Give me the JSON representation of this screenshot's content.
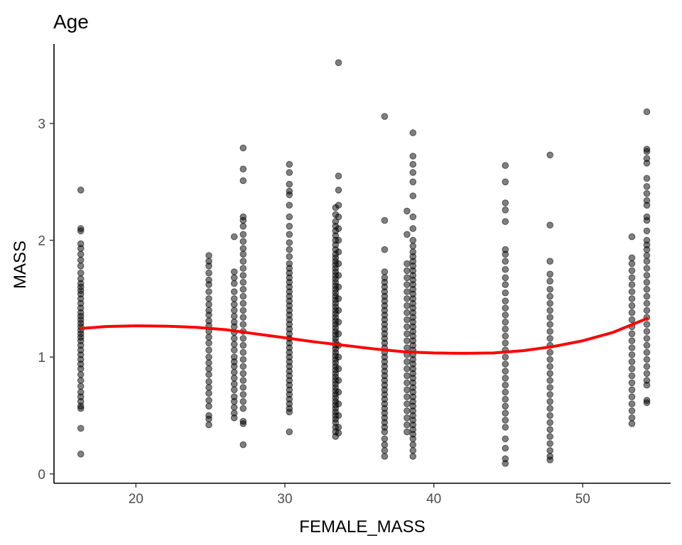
{
  "chart_data": {
    "type": "scatter",
    "title": "Age",
    "xlabel": "FEMALE_MASS",
    "ylabel": "MASS",
    "xlim": [
      14.5,
      55.9
    ],
    "ylim": [
      -0.08,
      3.68
    ],
    "xticks": [
      20,
      30,
      40,
      50
    ],
    "yticks": [
      0,
      1,
      2,
      3
    ],
    "grid": false,
    "legend": "none",
    "point_color": "#000000",
    "point_opacity": 0.5,
    "smooth_color": "#ff0000",
    "groups": [
      {
        "x": 16.3,
        "y": [
          2.43,
          2.1,
          2.08,
          1.97,
          1.93,
          1.88,
          1.83,
          1.78,
          1.72,
          1.67,
          1.63,
          1.6,
          1.57,
          1.54,
          1.5,
          1.46,
          1.42,
          1.38,
          1.35,
          1.32,
          1.29,
          1.26,
          1.23,
          1.2,
          1.17,
          1.14,
          1.1,
          1.06,
          1.02,
          0.98,
          0.94,
          0.9,
          0.85,
          0.8,
          0.75,
          0.7,
          0.66,
          0.62,
          0.58,
          0.56,
          0.39,
          0.17
        ]
      },
      {
        "x": 24.9,
        "y": [
          1.87,
          1.82,
          1.78,
          1.72,
          1.66,
          1.62,
          1.56,
          1.5,
          1.45,
          1.4,
          1.36,
          1.31,
          1.27,
          1.22,
          1.17,
          1.12,
          1.06,
          1.0,
          0.95,
          0.9,
          0.85,
          0.79,
          0.74,
          0.69,
          0.63,
          0.58,
          0.5,
          0.47,
          0.42
        ]
      },
      {
        "x": 26.6,
        "y": [
          2.03,
          1.73,
          1.68,
          1.63,
          1.56,
          1.5,
          1.45,
          1.4,
          1.35,
          1.3,
          1.26,
          1.21,
          1.16,
          1.11,
          1.06,
          1.0,
          0.96,
          0.92,
          0.87,
          0.82,
          0.77,
          0.72,
          0.66,
          0.62,
          0.57,
          0.52,
          0.48
        ]
      },
      {
        "x": 27.2,
        "y": [
          2.79,
          2.61,
          2.51,
          2.2,
          2.17,
          2.12,
          2.05,
          1.99,
          1.93,
          1.88,
          1.82,
          1.76,
          1.7,
          1.64,
          1.58,
          1.52,
          1.46,
          1.4,
          1.34,
          1.28,
          1.22,
          1.16,
          1.1,
          1.04,
          0.98,
          0.92,
          0.86,
          0.8,
          0.74,
          0.68,
          0.62,
          0.56,
          0.45,
          0.43,
          0.25
        ]
      },
      {
        "x": 30.3,
        "y": [
          2.65,
          2.58,
          2.48,
          2.42,
          2.39,
          2.3,
          2.2,
          2.12,
          2.05,
          1.98,
          1.92,
          1.86,
          1.8,
          1.76,
          1.72,
          1.68,
          1.64,
          1.6,
          1.56,
          1.52,
          1.48,
          1.44,
          1.4,
          1.36,
          1.32,
          1.28,
          1.24,
          1.2,
          1.16,
          1.12,
          1.08,
          1.04,
          1.0,
          0.96,
          0.92,
          0.88,
          0.84,
          0.8,
          0.76,
          0.72,
          0.68,
          0.64,
          0.6,
          0.56,
          0.53,
          0.36
        ]
      },
      {
        "x": 33.4,
        "y": [
          2.28,
          2.22,
          2.16,
          2.12,
          2.08,
          2.04,
          2.0,
          1.96,
          1.92,
          1.88,
          1.85,
          1.82,
          1.79,
          1.76,
          1.73,
          1.7,
          1.67,
          1.64,
          1.61,
          1.58,
          1.55,
          1.52,
          1.49,
          1.46,
          1.43,
          1.4,
          1.37,
          1.34,
          1.31,
          1.28,
          1.25,
          1.22,
          1.19,
          1.16,
          1.13,
          1.1,
          1.07,
          1.04,
          1.01,
          0.98,
          0.95,
          0.92,
          0.89,
          0.86,
          0.83,
          0.8,
          0.77,
          0.74,
          0.71,
          0.68,
          0.65,
          0.62,
          0.59,
          0.56,
          0.53,
          0.5,
          0.47,
          0.44,
          0.4,
          0.36,
          0.32
        ]
      },
      {
        "x": 33.6,
        "y": [
          3.52,
          2.55,
          2.43,
          2.3,
          2.2,
          2.1,
          2.0,
          1.9,
          1.8,
          1.7,
          1.6,
          1.5,
          1.4,
          1.3,
          1.2,
          1.1,
          1.0,
          0.9,
          0.8,
          0.7,
          0.6,
          0.5,
          0.4,
          0.35
        ]
      },
      {
        "x": 36.7,
        "y": [
          3.06,
          2.17,
          1.92,
          1.73,
          1.68,
          1.64,
          1.6,
          1.56,
          1.52,
          1.48,
          1.44,
          1.4,
          1.36,
          1.32,
          1.28,
          1.24,
          1.2,
          1.16,
          1.12,
          1.08,
          1.04,
          1.0,
          0.96,
          0.92,
          0.88,
          0.84,
          0.8,
          0.76,
          0.72,
          0.68,
          0.64,
          0.6,
          0.56,
          0.52,
          0.48,
          0.44,
          0.4,
          0.36,
          0.3,
          0.25,
          0.2,
          0.15
        ]
      },
      {
        "x": 38.2,
        "y": [
          2.25,
          2.05,
          1.8,
          1.74,
          1.68,
          1.62,
          1.56,
          1.5,
          1.44,
          1.38,
          1.32,
          1.26,
          1.2,
          1.14,
          1.08,
          1.02,
          0.96,
          0.9,
          0.84,
          0.78,
          0.72,
          0.66,
          0.6,
          0.54,
          0.48,
          0.42,
          0.36
        ]
      },
      {
        "x": 38.6,
        "y": [
          2.92,
          2.72,
          2.65,
          2.58,
          2.5,
          2.38,
          2.2,
          2.1,
          2.0,
          1.95,
          1.9,
          1.86,
          1.82,
          1.78,
          1.74,
          1.7,
          1.66,
          1.62,
          1.58,
          1.54,
          1.5,
          1.46,
          1.42,
          1.38,
          1.34,
          1.3,
          1.26,
          1.22,
          1.18,
          1.14,
          1.1,
          1.06,
          1.02,
          0.98,
          0.94,
          0.9,
          0.86,
          0.82,
          0.78,
          0.74,
          0.7,
          0.66,
          0.62,
          0.58,
          0.54,
          0.5,
          0.46,
          0.42,
          0.38,
          0.34,
          0.3,
          0.25,
          0.2,
          0.15
        ]
      },
      {
        "x": 44.8,
        "y": [
          2.64,
          2.5,
          2.32,
          2.26,
          2.16,
          1.92,
          1.88,
          1.82,
          1.75,
          1.68,
          1.62,
          1.55,
          1.48,
          1.42,
          1.36,
          1.3,
          1.24,
          1.18,
          1.12,
          1.06,
          1.0,
          0.94,
          0.88,
          0.82,
          0.76,
          0.7,
          0.64,
          0.58,
          0.52,
          0.46,
          0.4,
          0.3,
          0.22,
          0.13,
          0.09
        ]
      },
      {
        "x": 47.8,
        "y": [
          2.73,
          2.13,
          1.82,
          1.71,
          1.65,
          1.58,
          1.52,
          1.46,
          1.4,
          1.34,
          1.28,
          1.22,
          1.16,
          1.1,
          1.04,
          0.98,
          0.92,
          0.86,
          0.8,
          0.74,
          0.68,
          0.62,
          0.56,
          0.5,
          0.44,
          0.38,
          0.32,
          0.26,
          0.2,
          0.15,
          0.12
        ]
      },
      {
        "x": 53.3,
        "y": [
          2.03,
          1.85,
          1.8,
          1.74,
          1.68,
          1.62,
          1.56,
          1.5,
          1.44,
          1.38,
          1.32,
          1.26,
          1.2,
          1.14,
          1.08,
          1.02,
          0.96,
          0.9,
          0.84,
          0.78,
          0.72,
          0.66,
          0.6,
          0.54,
          0.48,
          0.43
        ]
      },
      {
        "x": 54.3,
        "y": [
          3.1,
          2.78,
          2.76,
          2.7,
          2.66,
          2.53,
          2.46,
          2.4,
          2.34,
          2.3,
          2.2,
          2.17,
          2.08,
          2.0,
          1.96,
          1.92,
          1.87,
          1.82,
          1.76,
          1.7,
          1.64,
          1.58,
          1.52,
          1.46,
          1.4,
          1.34,
          1.28,
          1.22,
          1.16,
          1.1,
          1.04,
          0.98,
          0.92,
          0.86,
          0.8,
          0.76,
          0.63,
          0.61
        ]
      }
    ],
    "smooth": {
      "x": [
        16.3,
        18,
        20,
        22,
        24,
        26,
        28,
        30,
        32,
        34,
        36,
        38,
        40,
        42,
        44,
        46,
        48,
        50,
        52,
        54.3
      ],
      "y": [
        1.245,
        1.262,
        1.268,
        1.265,
        1.255,
        1.235,
        1.2,
        1.165,
        1.13,
        1.1,
        1.07,
        1.045,
        1.035,
        1.032,
        1.035,
        1.055,
        1.09,
        1.14,
        1.21,
        1.33
      ]
    }
  }
}
